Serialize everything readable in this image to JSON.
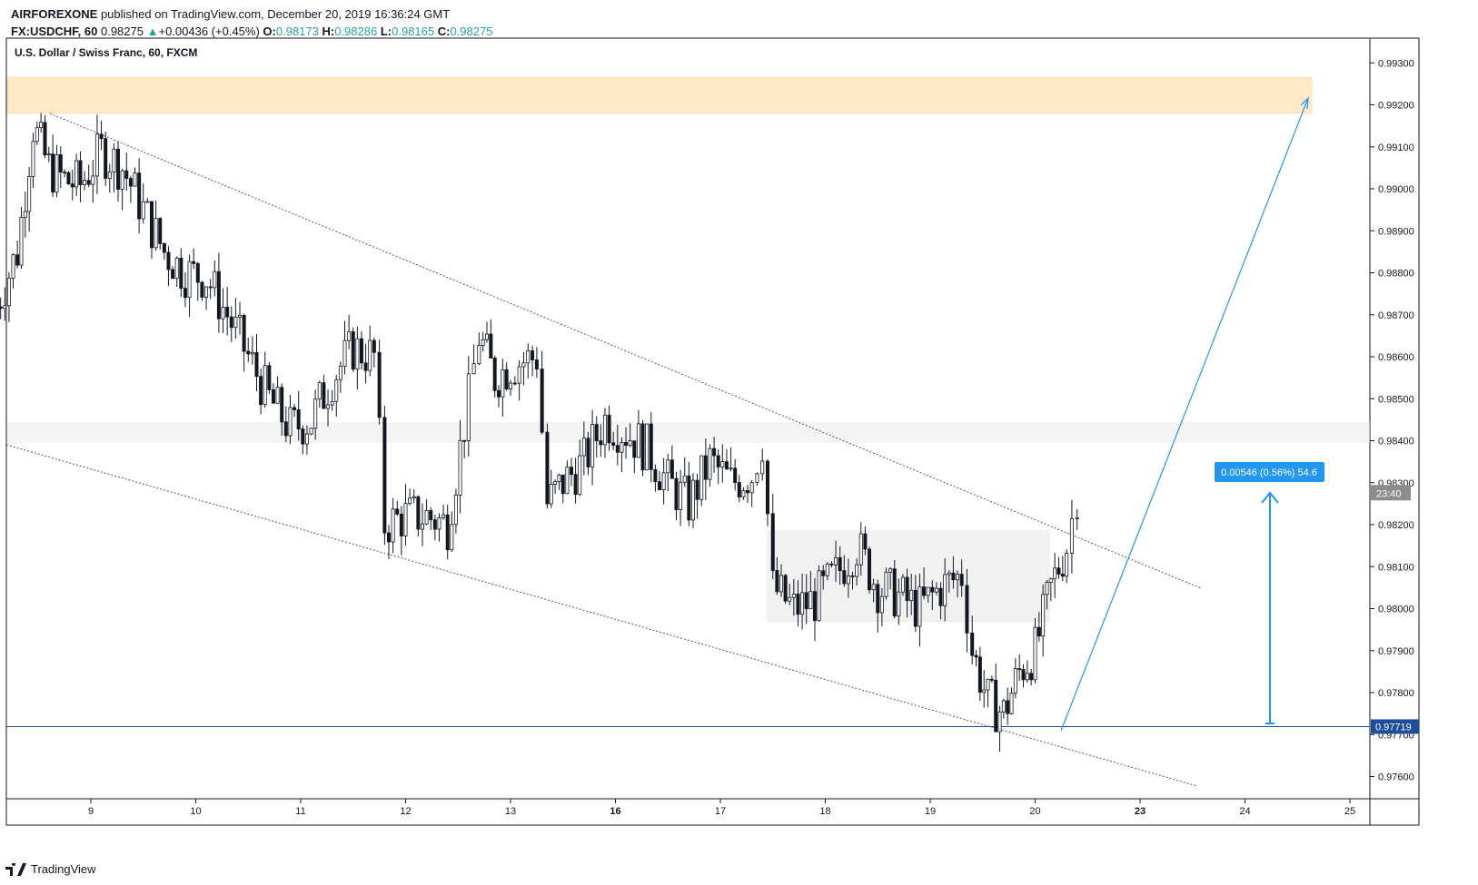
{
  "header": {
    "author": "AIRFOREXONE",
    "published": " published on TradingView.com, December 20, 2019 16:36:24 GMT",
    "symbol": "FX:USDCHF, 60",
    "last": "0.98275",
    "change": "+0.00436 (+0.45%)",
    "o_label": "O:",
    "o": "0.98173",
    "h_label": "H:",
    "h": "0.98286",
    "l_label": "L:",
    "l": "0.98165",
    "c_label": "C:",
    "c": "0.98275"
  },
  "pane_title": "U.S. Dollar / Swiss Franc, 60, FXCM",
  "footer": {
    "brand": "TradingView"
  },
  "colors": {
    "up": "#26a69a",
    "candle": "#131722",
    "line": "#2196f3",
    "zone": "#ffe0b2",
    "price_label": "#131722",
    "accent_blue": "#1e4d9b"
  },
  "chart_data": {
    "type": "candlestick",
    "title": "U.S. Dollar / Swiss Franc, 60, FXCM",
    "x_ticks": [
      "9",
      "10",
      "11",
      "12",
      "13",
      "16",
      "17",
      "18",
      "19",
      "20",
      "23",
      "24",
      "25"
    ],
    "y_ticks": [
      "0.99300",
      "0.99200",
      "0.99100",
      "0.99000",
      "0.98900",
      "0.98800",
      "0.98700",
      "0.98600",
      "0.98500",
      "0.98400",
      "0.98300",
      "0.98200",
      "0.98100",
      "0.98000",
      "0.97900",
      "0.97800",
      "0.97700",
      "0.97600"
    ],
    "ylim": [
      0.9754,
      0.9934
    ],
    "current_price_label": "23:40",
    "horizontal_line": {
      "value": 0.97719,
      "label": "0.97719"
    },
    "measure_label": "0.00546 (0.56%) 54.6",
    "resistance_zone": [
      0.9918,
      0.99265
    ],
    "grey_zone": [
      0.98395,
      0.98445
    ],
    "consolidation_box": [
      0.9797,
      0.98185
    ],
    "candles_close_path": [
      [
        8.1,
        0.9872
      ],
      [
        8.3,
        0.9885
      ],
      [
        8.45,
        0.9915
      ],
      [
        8.6,
        0.9905
      ],
      [
        8.75,
        0.9902
      ],
      [
        8.9,
        0.9901
      ],
      [
        9.1,
        0.9909
      ],
      [
        9.3,
        0.9905
      ],
      [
        9.5,
        0.9895
      ],
      [
        9.7,
        0.9885
      ],
      [
        9.9,
        0.988
      ],
      [
        10.1,
        0.9879
      ],
      [
        10.3,
        0.987
      ],
      [
        10.5,
        0.986
      ],
      [
        10.7,
        0.985
      ],
      [
        10.9,
        0.9843
      ],
      [
        11.1,
        0.9845
      ],
      [
        11.3,
        0.9855
      ],
      [
        11.5,
        0.9862
      ],
      [
        11.7,
        0.986
      ],
      [
        11.8,
        0.982
      ],
      [
        12.0,
        0.9822
      ],
      [
        12.2,
        0.9822
      ],
      [
        12.4,
        0.982
      ],
      [
        12.6,
        0.985
      ],
      [
        12.7,
        0.9865
      ],
      [
        12.85,
        0.9855
      ],
      [
        13.0,
        0.9858
      ],
      [
        13.25,
        0.986
      ],
      [
        13.35,
        0.9825
      ],
      [
        13.5,
        0.983
      ],
      [
        13.7,
        0.9835
      ],
      [
        13.9,
        0.9845
      ],
      [
        14.1,
        0.9842
      ],
      [
        14.3,
        0.9838
      ],
      [
        14.5,
        0.983
      ],
      [
        14.7,
        0.9825
      ],
      [
        14.9,
        0.9835
      ],
      [
        15.1,
        0.983
      ],
      [
        15.3,
        0.9832
      ],
      [
        15.4,
        0.984
      ],
      [
        15.5,
        0.9805
      ],
      [
        15.7,
        0.98
      ],
      [
        15.9,
        0.9802
      ],
      [
        16.1,
        0.9808
      ],
      [
        16.3,
        0.9815
      ],
      [
        16.5,
        0.9805
      ],
      [
        16.7,
        0.9803
      ],
      [
        16.9,
        0.98
      ],
      [
        17.1,
        0.9805
      ],
      [
        17.3,
        0.9808
      ],
      [
        17.4,
        0.979
      ],
      [
        17.55,
        0.9778
      ],
      [
        17.7,
        0.9775
      ],
      [
        17.85,
        0.9785
      ],
      [
        18.0,
        0.979
      ],
      [
        18.15,
        0.9805
      ],
      [
        18.3,
        0.9815
      ],
      [
        18.4,
        0.98275
      ]
    ]
  }
}
